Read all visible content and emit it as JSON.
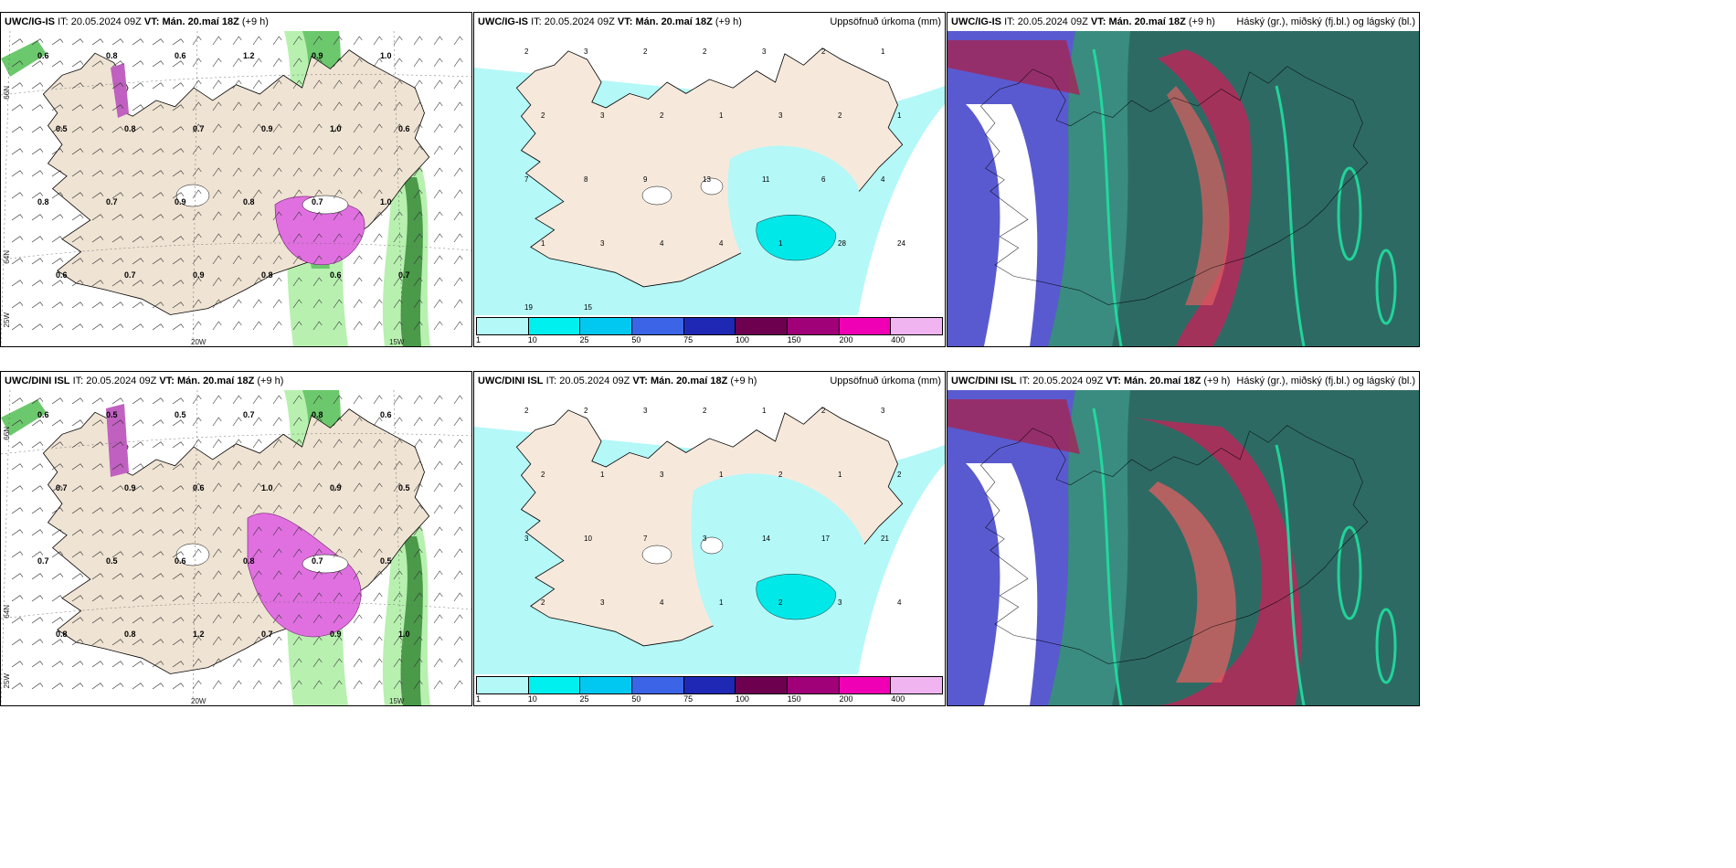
{
  "panels": [
    {
      "model": "UWC/IG-IS",
      "it_label": "IT:",
      "it_value": "20.05.2024 09Z",
      "vt_label": "VT:",
      "vt_value": "Mán. 20.maí 18Z",
      "lead": "(+9 h)",
      "right_title": "",
      "kind": "wind",
      "labels": [
        "0.6",
        "0.8",
        "0.6",
        "1.2",
        "0.9",
        "1.0",
        "0.5",
        "0.8",
        "0.7",
        "0.9",
        "1.0",
        "0.6",
        "0.8",
        "0.7",
        "0.9",
        "0.8",
        "0.7",
        "1.0",
        "0.6",
        "0.7",
        "0.9",
        "0.8",
        "0.6",
        "0.7"
      ],
      "axis": {
        "lat66": "66N",
        "lat64": "64N",
        "lon20": "20W",
        "lon15": "15W",
        "lon25": "25W"
      }
    },
    {
      "model": "UWC/IG-IS",
      "it_label": "IT:",
      "it_value": "20.05.2024 09Z",
      "vt_label": "VT:",
      "vt_value": "Mán. 20.maí 18Z",
      "lead": "(+9 h)",
      "right_title": "Uppsöfnuð úrkoma (mm)",
      "kind": "precip",
      "labels": [
        "2",
        "3",
        "2",
        "2",
        "3",
        "2",
        "1",
        "2",
        "3",
        "2",
        "1",
        "3",
        "2",
        "1",
        "7",
        "8",
        "9",
        "13",
        "11",
        "6",
        "4",
        "1",
        "3",
        "4",
        "4",
        "1",
        "28",
        "24",
        "19",
        "15"
      ],
      "legend": [
        "1",
        "10",
        "25",
        "50",
        "75",
        "100",
        "150",
        "200",
        "400"
      ]
    },
    {
      "model": "UWC/IG-IS",
      "it_label": "IT:",
      "it_value": "20.05.2024 09Z",
      "vt_label": "VT:",
      "vt_value": "Mán. 20.maí 18Z",
      "lead": "(+9 h)",
      "right_title": "Háský (gr.), miðský (fj.bl.) og lágský (bl.)",
      "kind": "cloud"
    },
    {
      "model": "UWC/DINI ISL",
      "it_label": "IT:",
      "it_value": "20.05.2024 09Z",
      "vt_label": "VT:",
      "vt_value": "Mán. 20.maí 18Z",
      "lead": "(+9 h)",
      "right_title": "",
      "kind": "wind",
      "labels": [
        "0.6",
        "0.5",
        "0.5",
        "0.7",
        "0.8",
        "0.6",
        "0.7",
        "0.9",
        "0.6",
        "1.0",
        "0.9",
        "0.5",
        "0.7",
        "0.5",
        "0.6",
        "0.8",
        "0.7",
        "0.5",
        "0.8",
        "0.8",
        "1.2",
        "0.7",
        "0.9",
        "1.0"
      ],
      "axis": {
        "lat66": "66N",
        "lat64": "64N",
        "lon20": "20W",
        "lon15": "15W",
        "lon25": "25W"
      }
    },
    {
      "model": "UWC/DINI ISL",
      "it_label": "IT:",
      "it_value": "20.05.2024 09Z",
      "vt_label": "VT:",
      "vt_value": "Mán. 20.maí 18Z",
      "lead": "(+9 h)",
      "right_title": "Uppsöfnuð úrkoma (mm)",
      "kind": "precip",
      "labels": [
        "2",
        "2",
        "3",
        "2",
        "1",
        "2",
        "3",
        "2",
        "1",
        "3",
        "1",
        "2",
        "1",
        "2",
        "3",
        "10",
        "7",
        "3",
        "14",
        "17",
        "21",
        "2",
        "3",
        "4",
        "1",
        "2",
        "3",
        "4"
      ],
      "legend": [
        "1",
        "10",
        "25",
        "50",
        "75",
        "100",
        "150",
        "200",
        "400"
      ]
    },
    {
      "model": "UWC/DINI ISL",
      "it_label": "IT:",
      "it_value": "20.05.2024 09Z",
      "vt_label": "VT:",
      "vt_value": "Mán. 20.maí 18Z",
      "lead": "(+9 h)",
      "right_title": "Háský (gr.), miðský (fj.bl.) og lágský (bl.)",
      "kind": "cloud"
    }
  ],
  "legend_colors": [
    "#b4f8f8",
    "#00f0f0",
    "#00c8f0",
    "#3c64e6",
    "#1e28b4",
    "#6e0050",
    "#a00078",
    "#f000b4",
    "#f0b4f0"
  ]
}
